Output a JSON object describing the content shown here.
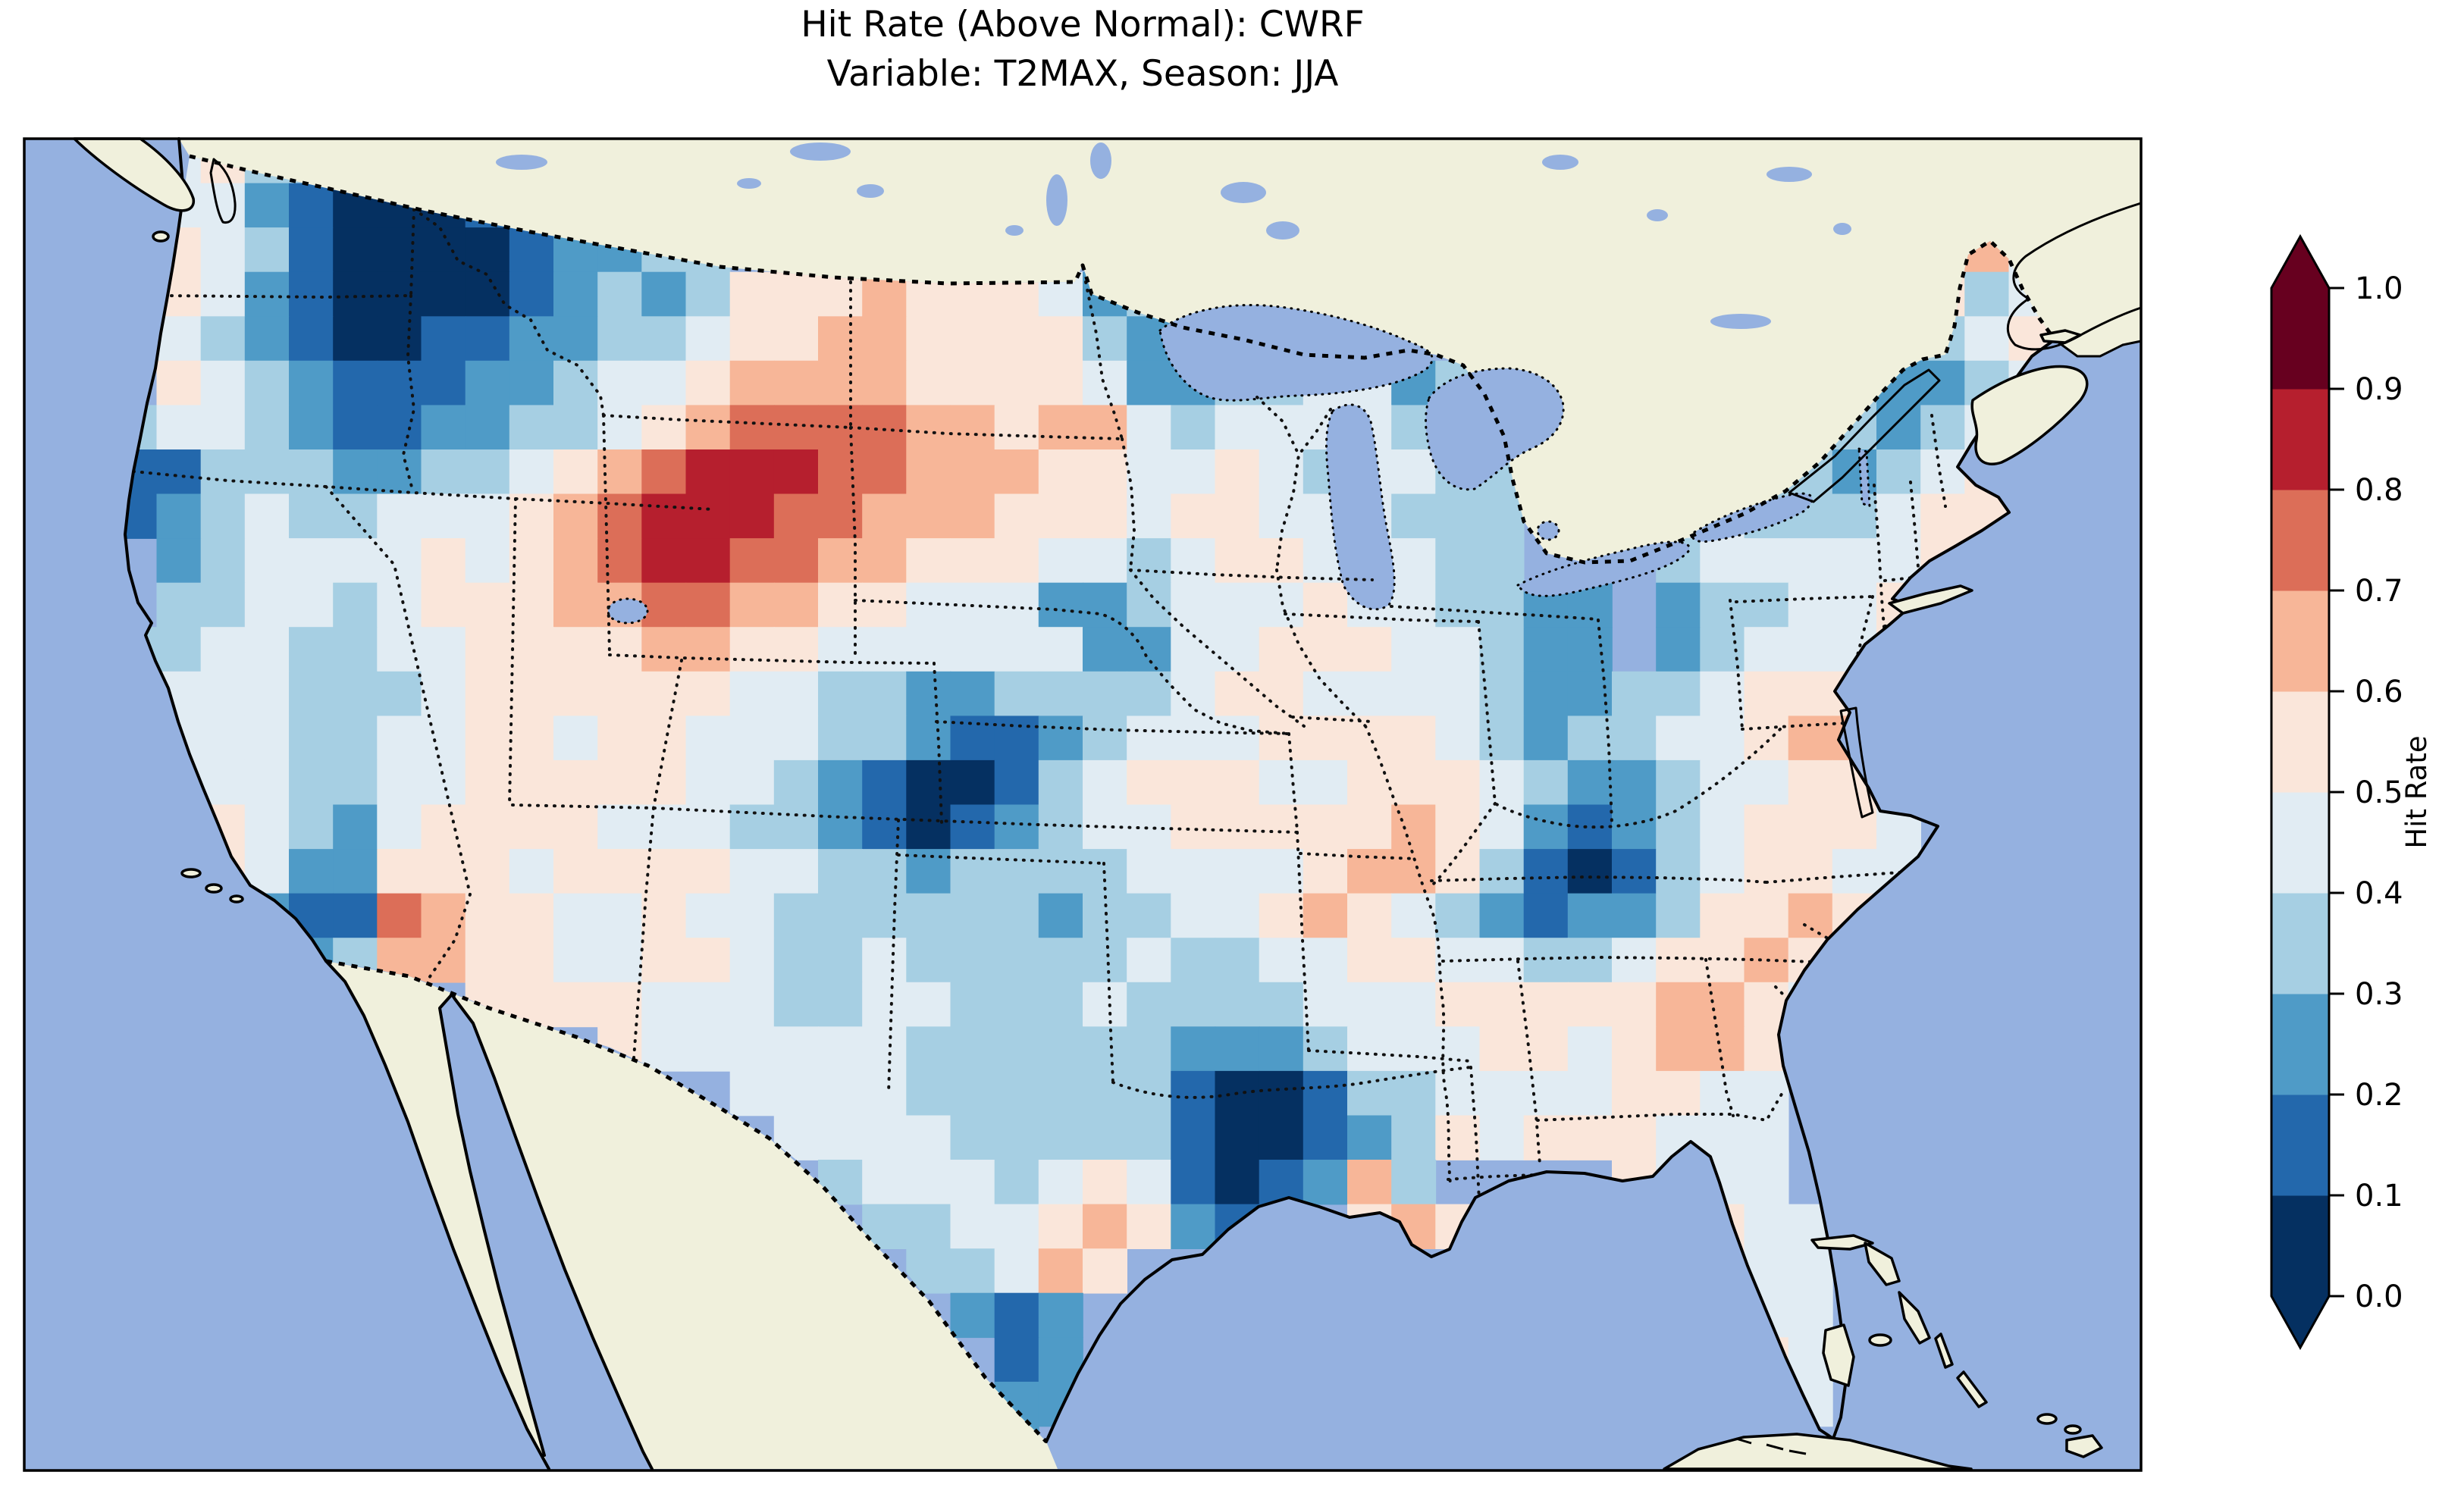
{
  "title": {
    "line1": "Hit Rate (Above Normal): CWRF",
    "line2": "Variable: T2MAX, Season: JJA"
  },
  "chart_data": {
    "type": "heatmap",
    "title": "Hit Rate (Above Normal): CWRF",
    "subtitle": "Variable: T2MAX, Season: JJA",
    "metric": "Hit Rate (Above Normal)",
    "model": "CWRF",
    "variable": "T2MAX",
    "season": "JJA",
    "region": "Contiguous United States with surrounding Canada, Mexico, Pacific and Atlantic oceans",
    "projection": "Lambert-conformal style North America map",
    "colormap": "RdBu_r, 10 discrete bins from 0.0 to 1.0, extended both ends",
    "colorbar": {
      "label": "Hit Rate",
      "orientation": "vertical",
      "extend": "both",
      "ticks": [
        0.0,
        0.1,
        0.2,
        0.3,
        0.4,
        0.5,
        0.6,
        0.7,
        0.8,
        0.9,
        1.0
      ],
      "colors": [
        "#053061",
        "#2368ac",
        "#4f9bc7",
        "#a6cfe3",
        "#e1ecf3",
        "#fae6da",
        "#f7b698",
        "#dc6e58",
        "#b61f2e",
        "#67001f"
      ],
      "under_color": "#053061",
      "over_color": "#67001f"
    },
    "map_colors": {
      "ocean": "#95b1e0",
      "land_no_data": "#f0f0dc",
      "coastline": "#000000"
    },
    "grid": {
      "ncols": 48,
      "nrows": 30,
      "legend": "Each character is one grid cell; digit d means hit-rate bin [d/10,(d+1)/10); '.' = no data (outside CONUS)",
      "rows": [
        "...4533",
        "...44210001................................554",
        "...5431000012233...........................564",
        "...54210000123235556555423.................534",
        "...4321001122334556655553233.............43345",
        "...543211122344566665555422334423.......432234",
        "..34432112233456777766566434444334...44333234",
        "..11333223345678887766655445434433...43332345",
        "..12343344456788877666555455444333...443334555",
        "...2344445456788776655544345544433...344444555",
        "...334434555667766554442234445443322.23344555",
        "..3344334455556655444444224455544322.2344455",
        "..34443334555555443322333345544443223345555",
        "..4444334455455444332112344455554323344566",
        "...444334455555443210013455544555432234455",
        "...5543245555444332101234455555654212345554",
        "....542255545555443323333444456653101345544",
        ".....2117655445443333332334456543212235565",
        "......23665544554334333334334455443345565",
        "..........5555444334433343333444555556654",
        ".............544444433333322234445545665",
        "................444433333310013344445544",
        ".................44443333310012354555444",
        "..................34443454101263....5444",
        "...................334456521..565....5544",
        "....................33465............6544",
        ".....................212.............5544",
        "......................12..............554",
        "......................22..............544",
        "......................2...............54"
      ]
    }
  }
}
